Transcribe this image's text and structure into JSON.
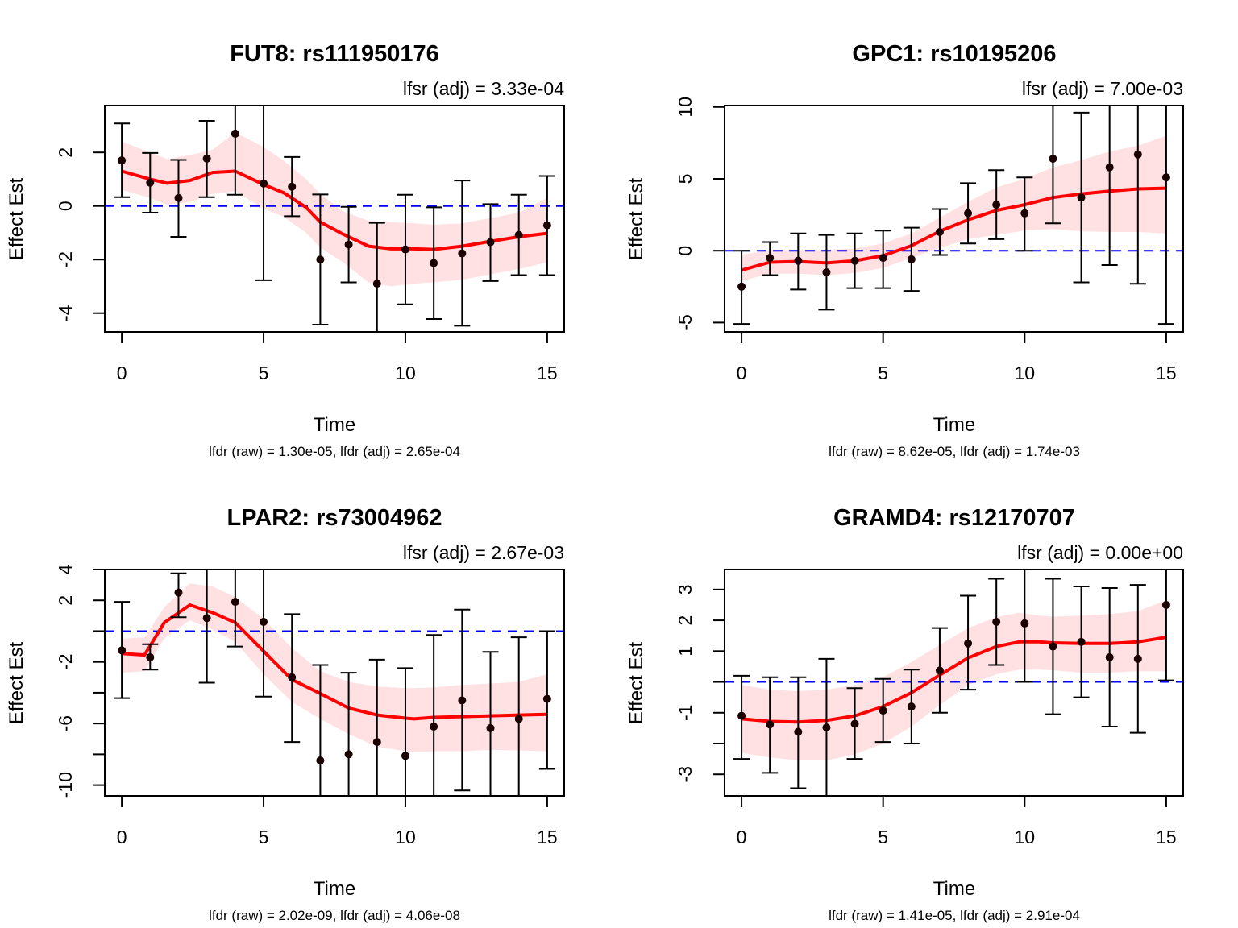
{
  "figure": {
    "layout": "2x2 grid of panels"
  },
  "chart_data": [
    {
      "type": "line",
      "title": "FUT8: rs111950176",
      "subtitle": "lfsr (adj) = 3.33e-04",
      "footer": "lfdr (raw) = 1.30e-05, lfdr (adj) = 2.65e-04",
      "xlabel": "Time",
      "ylabel": "Effect Est",
      "xlim": [
        -0.6,
        15.6
      ],
      "ylim": [
        -4.7,
        3.75
      ],
      "xticks": [
        0,
        5,
        10,
        15
      ],
      "yticks": [
        -4,
        -2,
        0,
        2
      ],
      "reference_line": 0,
      "points": {
        "x": [
          0,
          1,
          2,
          3,
          4,
          5,
          6,
          7,
          8,
          9,
          10,
          11,
          12,
          13,
          14,
          15
        ],
        "y": [
          1.7,
          0.87,
          0.3,
          1.77,
          2.7,
          0.84,
          0.72,
          -2.0,
          -1.44,
          -2.9,
          -1.62,
          -2.13,
          -1.77,
          -1.35,
          -1.08,
          -0.72
        ],
        "lower": [
          0.33,
          -0.25,
          -1.15,
          0.33,
          0.42,
          -2.77,
          -0.38,
          -4.43,
          -2.85,
          -4.7,
          -3.67,
          -4.22,
          -4.47,
          -2.8,
          -2.58,
          -2.58
        ],
        "upper": [
          3.08,
          1.98,
          1.72,
          3.18,
          3.9,
          4.1,
          1.83,
          0.43,
          -0.03,
          -0.63,
          0.42,
          -0.05,
          0.95,
          0.07,
          0.42,
          1.12
        ]
      },
      "smooth": {
        "x": [
          0,
          1,
          1.6,
          2.4,
          3.2,
          4,
          5,
          5.7,
          6.5,
          7,
          7.8,
          8.7,
          9.5,
          10.3,
          11,
          12,
          13,
          14,
          15
        ],
        "y": [
          1.3,
          1.0,
          0.85,
          0.95,
          1.25,
          1.3,
          0.8,
          0.5,
          -0.05,
          -0.6,
          -1.05,
          -1.5,
          -1.6,
          -1.6,
          -1.62,
          -1.5,
          -1.32,
          -1.15,
          -1.02
        ],
        "lower": [
          0.6,
          0.3,
          0.05,
          0.15,
          0.45,
          0.55,
          -0.1,
          -0.4,
          -1.0,
          -1.55,
          -2.1,
          -2.85,
          -3.0,
          -2.9,
          -2.85,
          -2.75,
          -2.55,
          -2.35,
          -2.1
        ],
        "upper": [
          2.4,
          2.0,
          1.75,
          1.9,
          2.1,
          2.75,
          2.2,
          1.7,
          1.0,
          0.45,
          -0.2,
          -0.55,
          -0.6,
          -0.65,
          -0.7,
          -0.65,
          -0.45,
          -0.25,
          0.3
        ]
      }
    },
    {
      "type": "line",
      "title": "GPC1: rs10195206",
      "subtitle": "lfsr (adj) = 7.00e-03",
      "footer": "lfdr (raw) = 8.62e-05, lfdr (adj) = 1.74e-03",
      "xlabel": "Time",
      "ylabel": "Effect Est",
      "xlim": [
        -0.6,
        15.6
      ],
      "ylim": [
        -5.65,
        10.1
      ],
      "xticks": [
        0,
        5,
        10,
        15
      ],
      "yticks": [
        -5,
        0,
        5,
        10
      ],
      "reference_line": 0,
      "points": {
        "x": [
          0,
          1,
          2,
          3,
          4,
          5,
          6,
          7,
          8,
          9,
          10,
          11,
          12,
          13,
          14,
          15
        ],
        "y": [
          -2.5,
          -0.5,
          -0.7,
          -1.5,
          -0.7,
          -0.5,
          -0.6,
          1.3,
          2.6,
          3.2,
          2.6,
          6.4,
          3.7,
          5.8,
          6.7,
          5.1
        ],
        "lower": [
          -5.1,
          -1.7,
          -2.7,
          -4.1,
          -2.6,
          -2.6,
          -2.8,
          -0.3,
          0.5,
          0.8,
          0.0,
          1.9,
          -2.2,
          -1.0,
          -2.3,
          -5.1
        ],
        "upper": [
          0.0,
          0.6,
          1.2,
          1.1,
          1.2,
          1.4,
          1.6,
          2.9,
          4.7,
          5.6,
          5.1,
          12.0,
          9.6,
          12.0,
          12.0,
          12.0
        ]
      },
      "smooth": {
        "x": [
          0,
          1,
          2,
          3,
          4,
          5,
          6,
          7,
          8,
          9,
          10,
          11,
          12,
          13,
          14,
          15
        ],
        "y": [
          -1.35,
          -0.8,
          -0.75,
          -0.85,
          -0.7,
          -0.35,
          0.35,
          1.35,
          2.15,
          2.8,
          3.2,
          3.7,
          3.95,
          4.15,
          4.3,
          4.35
        ],
        "lower": [
          -2.1,
          -1.6,
          -1.6,
          -1.7,
          -1.55,
          -1.2,
          -0.5,
          0.2,
          0.8,
          1.1,
          1.4,
          1.5,
          1.35,
          1.3,
          1.3,
          1.2
        ],
        "upper": [
          -0.3,
          0.05,
          0.05,
          0.05,
          0.15,
          0.5,
          1.2,
          2.3,
          3.4,
          4.4,
          5.0,
          5.8,
          6.3,
          6.9,
          7.3,
          8.0
        ]
      }
    },
    {
      "type": "line",
      "title": "LPAR2: rs73004962",
      "subtitle": "lfsr (adj) = 2.67e-03",
      "footer": "lfdr (raw) = 2.02e-09, lfdr (adj) = 4.06e-08",
      "xlabel": "Time",
      "ylabel": "Effect Est",
      "xlim": [
        -0.6,
        15.6
      ],
      "ylim": [
        -10.7,
        4.0
      ],
      "xticks": [
        0,
        5,
        10,
        15
      ],
      "yticks": [
        -10,
        -8,
        -6,
        -4,
        -2,
        0,
        2,
        4
      ],
      "ytick_labels": [
        "-10",
        "",
        "-6",
        "",
        "-2",
        "",
        "2",
        "4"
      ],
      "reference_line": 0,
      "points": {
        "x": [
          0,
          1,
          2,
          3,
          4,
          5,
          6,
          7,
          8,
          9,
          10,
          11,
          12,
          13,
          14,
          15
        ],
        "y": [
          -1.25,
          -1.7,
          2.5,
          0.85,
          1.9,
          0.6,
          -3.0,
          -8.4,
          -8.0,
          -7.2,
          -8.1,
          -6.2,
          -4.5,
          -6.3,
          -5.7,
          -4.4
        ],
        "lower": [
          -4.35,
          -2.5,
          0.9,
          -3.35,
          -1.0,
          -4.25,
          -7.2,
          -10.7,
          -10.7,
          -10.7,
          -10.7,
          -10.7,
          -10.35,
          -10.7,
          -10.7,
          -8.95
        ],
        "upper": [
          1.9,
          -0.85,
          3.75,
          4.0,
          4.0,
          4.0,
          1.1,
          -2.2,
          -2.7,
          -1.85,
          -2.4,
          -0.25,
          1.4,
          -1.35,
          -0.4,
          0.0
        ]
      },
      "smooth": {
        "x": [
          0,
          0.8,
          1.5,
          2.4,
          3.2,
          4,
          5,
          6,
          7,
          8,
          9,
          10,
          10.3,
          11,
          12,
          13,
          14,
          15
        ],
        "y": [
          -1.45,
          -1.55,
          0.55,
          1.7,
          1.2,
          0.55,
          -1.3,
          -3.15,
          -4.05,
          -5.0,
          -5.45,
          -5.65,
          -5.7,
          -5.6,
          -5.55,
          -5.5,
          -5.45,
          -5.4
        ],
        "lower": [
          -2.7,
          -2.6,
          -0.45,
          0.7,
          0.1,
          -0.7,
          -2.8,
          -4.6,
          -5.7,
          -6.7,
          -7.5,
          -7.8,
          -7.85,
          -7.8,
          -7.8,
          -7.7,
          -7.75,
          -7.8
        ],
        "upper": [
          -0.5,
          -0.4,
          1.55,
          3.1,
          2.9,
          2.2,
          0.8,
          -1.1,
          -2.6,
          -3.3,
          -3.6,
          -3.7,
          -3.7,
          -3.65,
          -3.5,
          -3.4,
          -3.3,
          -2.8
        ]
      }
    },
    {
      "type": "line",
      "title": "GRAMD4: rs12170707",
      "subtitle": "lfsr (adj) = 0.00e+00",
      "footer": "lfdr (raw) = 1.41e-05, lfdr (adj) = 2.91e-04",
      "xlabel": "Time",
      "ylabel": "Effect Est",
      "xlim": [
        -0.6,
        15.6
      ],
      "ylim": [
        -3.7,
        3.65
      ],
      "xticks": [
        0,
        5,
        10,
        15
      ],
      "yticks": [
        -3,
        -2,
        -1,
        0,
        1,
        2,
        3
      ],
      "ytick_labels": [
        "-3",
        "",
        "-1",
        "",
        "1",
        "2",
        "3"
      ],
      "reference_line": 0,
      "points": {
        "x": [
          0,
          1,
          2,
          3,
          4,
          5,
          6,
          7,
          8,
          9,
          10,
          11,
          12,
          13,
          14,
          15
        ],
        "y": [
          -1.1,
          -1.38,
          -1.62,
          -1.48,
          -1.36,
          -0.93,
          -0.8,
          0.37,
          1.25,
          1.95,
          1.9,
          1.15,
          1.3,
          0.8,
          0.75,
          2.5
        ],
        "lower": [
          -2.5,
          -2.95,
          -3.45,
          -3.7,
          -2.5,
          -1.95,
          -2.0,
          -1.0,
          -0.25,
          0.55,
          0.0,
          -1.05,
          -0.5,
          -1.45,
          -1.65,
          0.05
        ],
        "upper": [
          0.2,
          0.15,
          0.15,
          0.75,
          -0.2,
          0.1,
          0.4,
          1.75,
          2.8,
          3.35,
          3.65,
          3.35,
          3.1,
          3.05,
          3.15,
          3.65
        ]
      },
      "smooth": {
        "x": [
          0,
          1,
          2,
          3,
          4,
          5,
          6,
          7,
          8,
          9,
          9.8,
          10.5,
          11,
          12,
          13,
          14,
          15
        ],
        "y": [
          -1.2,
          -1.28,
          -1.3,
          -1.25,
          -1.1,
          -0.8,
          -0.35,
          0.22,
          0.78,
          1.15,
          1.3,
          1.3,
          1.27,
          1.25,
          1.25,
          1.3,
          1.45
        ],
        "lower": [
          -2.3,
          -2.45,
          -2.55,
          -2.55,
          -2.35,
          -2.0,
          -1.45,
          -0.75,
          -0.1,
          0.25,
          0.4,
          0.4,
          0.38,
          0.3,
          0.3,
          0.35,
          0.35
        ],
        "upper": [
          -0.1,
          -0.25,
          -0.3,
          -0.25,
          -0.1,
          0.15,
          0.65,
          1.2,
          1.75,
          2.1,
          2.25,
          2.15,
          2.12,
          2.15,
          2.2,
          2.3,
          2.65
        ]
      }
    }
  ],
  "colors": {
    "smooth_line": "#ff0000",
    "band": "#ffe0e3",
    "reference_line": "#0000ff",
    "points": "#1a0000",
    "axes": "#000000"
  }
}
